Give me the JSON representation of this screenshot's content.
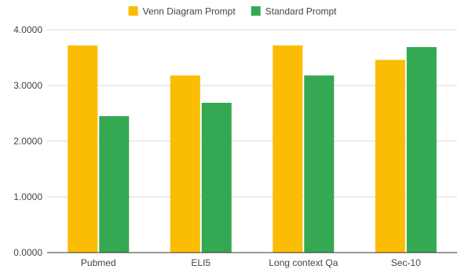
{
  "chart_data": {
    "type": "bar",
    "title": "",
    "xlabel": "",
    "ylabel": "",
    "categories": [
      "Pubmed",
      "ELI5",
      "Long context Qa",
      "Sec-10"
    ],
    "series": [
      {
        "name": "Venn Diagram Prompt",
        "color": "#fbbc04",
        "values": [
          3.72,
          3.18,
          3.72,
          3.46
        ]
      },
      {
        "name": "Standard Prompt",
        "color": "#34a853",
        "values": [
          2.45,
          2.69,
          3.18,
          3.69
        ]
      }
    ],
    "ylim": [
      0,
      4
    ],
    "yticks": [
      "0.0000",
      "1.0000",
      "2.0000",
      "3.0000",
      "4.0000"
    ],
    "grid": true,
    "legend_position": "top-center",
    "gridline_color": "#d9d9d9",
    "axis_color": "#333333"
  }
}
